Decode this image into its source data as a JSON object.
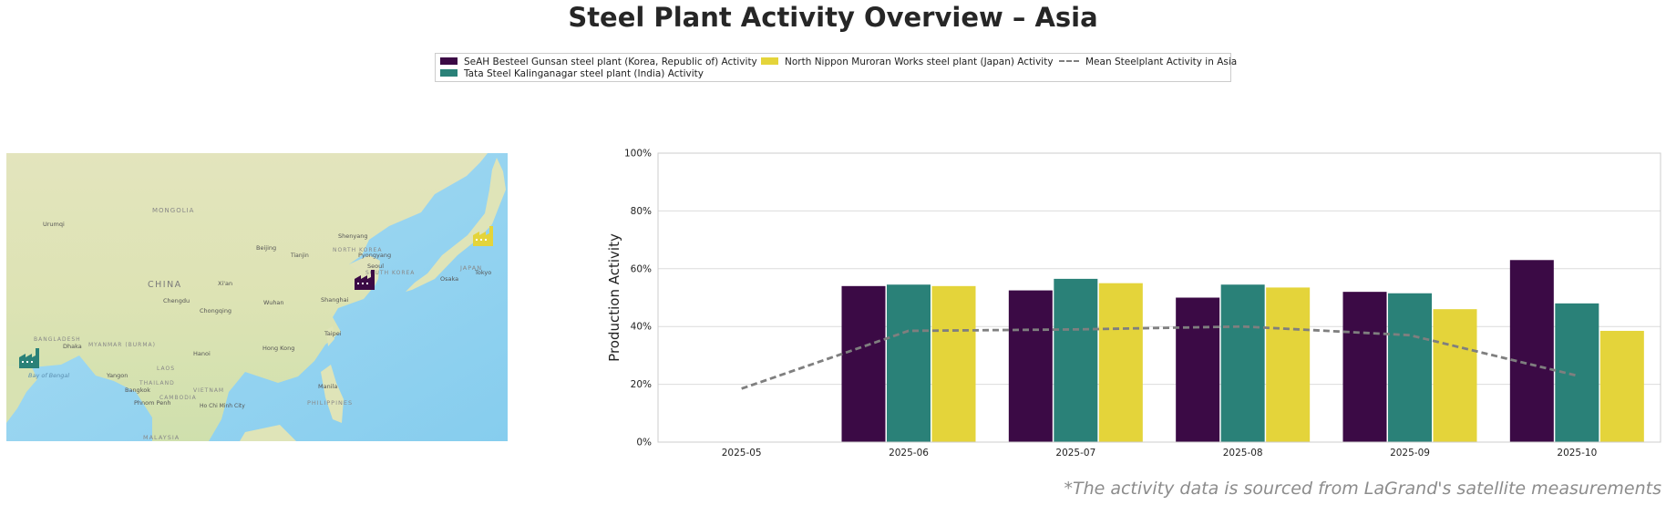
{
  "title": "Steel Plant Activity Overview – Asia",
  "footnote": "*The activity data is sourced from LaGrand's satellite measurements",
  "legend": {
    "items": [
      {
        "label": "SeAH Besteel Gunsan steel plant (Korea, Republic of) Activity",
        "color": "#3b0a45"
      },
      {
        "label": "Tata Steel Kalinganagar steel plant (India) Activity",
        "color": "#2a8178"
      },
      {
        "label": "North Nippon Muroran Works steel plant (Japan) Activity",
        "color": "#e4d43a"
      },
      {
        "label": "Mean Steelplant Activity in Asia",
        "color": "#7f7f7f"
      }
    ]
  },
  "map": {
    "labels": [
      "MONGOLIA",
      "Urumqi",
      "Shenyang",
      "Beijing",
      "Tianjin",
      "NORTH KOREA",
      "Pyongyang",
      "Seoul",
      "SOUTH KOREA",
      "JAPAN",
      "Osaka",
      "Tokyo",
      "CHINA",
      "Xi'an",
      "Wuhan",
      "Shanghai",
      "Chengdu",
      "Chongqing",
      "BANGLADESH",
      "Dhaka",
      "MYANMAR (BURMA)",
      "Hanoi",
      "Hong Kong",
      "Taipei",
      "Bay of Bengal",
      "Yangon",
      "LAOS",
      "THAILAND",
      "VIETNAM",
      "Bangkok",
      "CAMBODIA",
      "Phnom Penh",
      "Ho Chi Minh City",
      "Manila",
      "PHILIPPINES",
      "MALAYSIA"
    ],
    "markers": [
      {
        "plant": "SeAH Besteel Gunsan",
        "icon": "factory-icon",
        "color": "#3b0a45"
      },
      {
        "plant": "Tata Steel Kalinganagar",
        "icon": "factory-icon",
        "color": "#2a8178"
      },
      {
        "plant": "North Nippon Muroran Works",
        "icon": "factory-icon",
        "color": "#e4d43a"
      }
    ]
  },
  "chart_data": {
    "type": "bar",
    "ylabel": "Production Activity",
    "xlabel": "",
    "ylim": [
      0,
      100
    ],
    "yticks": [
      0,
      20,
      40,
      60,
      80,
      100
    ],
    "ytick_labels": [
      "0%",
      "20%",
      "40%",
      "60%",
      "80%",
      "100%"
    ],
    "grid": true,
    "categories": [
      "2025-05",
      "2025-06",
      "2025-07",
      "2025-08",
      "2025-09",
      "2025-10"
    ],
    "series": [
      {
        "name": "SeAH Besteel Gunsan steel plant (Korea, Republic of) Activity",
        "color": "#3b0a45",
        "values": [
          null,
          54,
          52.5,
          50,
          52,
          63
        ]
      },
      {
        "name": "Tata Steel Kalinganagar steel plant (India) Activity",
        "color": "#2a8178",
        "values": [
          null,
          54.5,
          56.5,
          54.5,
          51.5,
          48
        ]
      },
      {
        "name": "North Nippon Muroran Works steel plant (Japan) Activity",
        "color": "#e4d43a",
        "values": [
          null,
          54,
          55,
          53.5,
          46,
          38.5
        ]
      }
    ],
    "mean_line": {
      "name": "Mean Steelplant Activity in Asia",
      "color": "#7f7f7f",
      "style": "dashed",
      "values": [
        18.5,
        38.5,
        39,
        40,
        37,
        23
      ]
    }
  }
}
